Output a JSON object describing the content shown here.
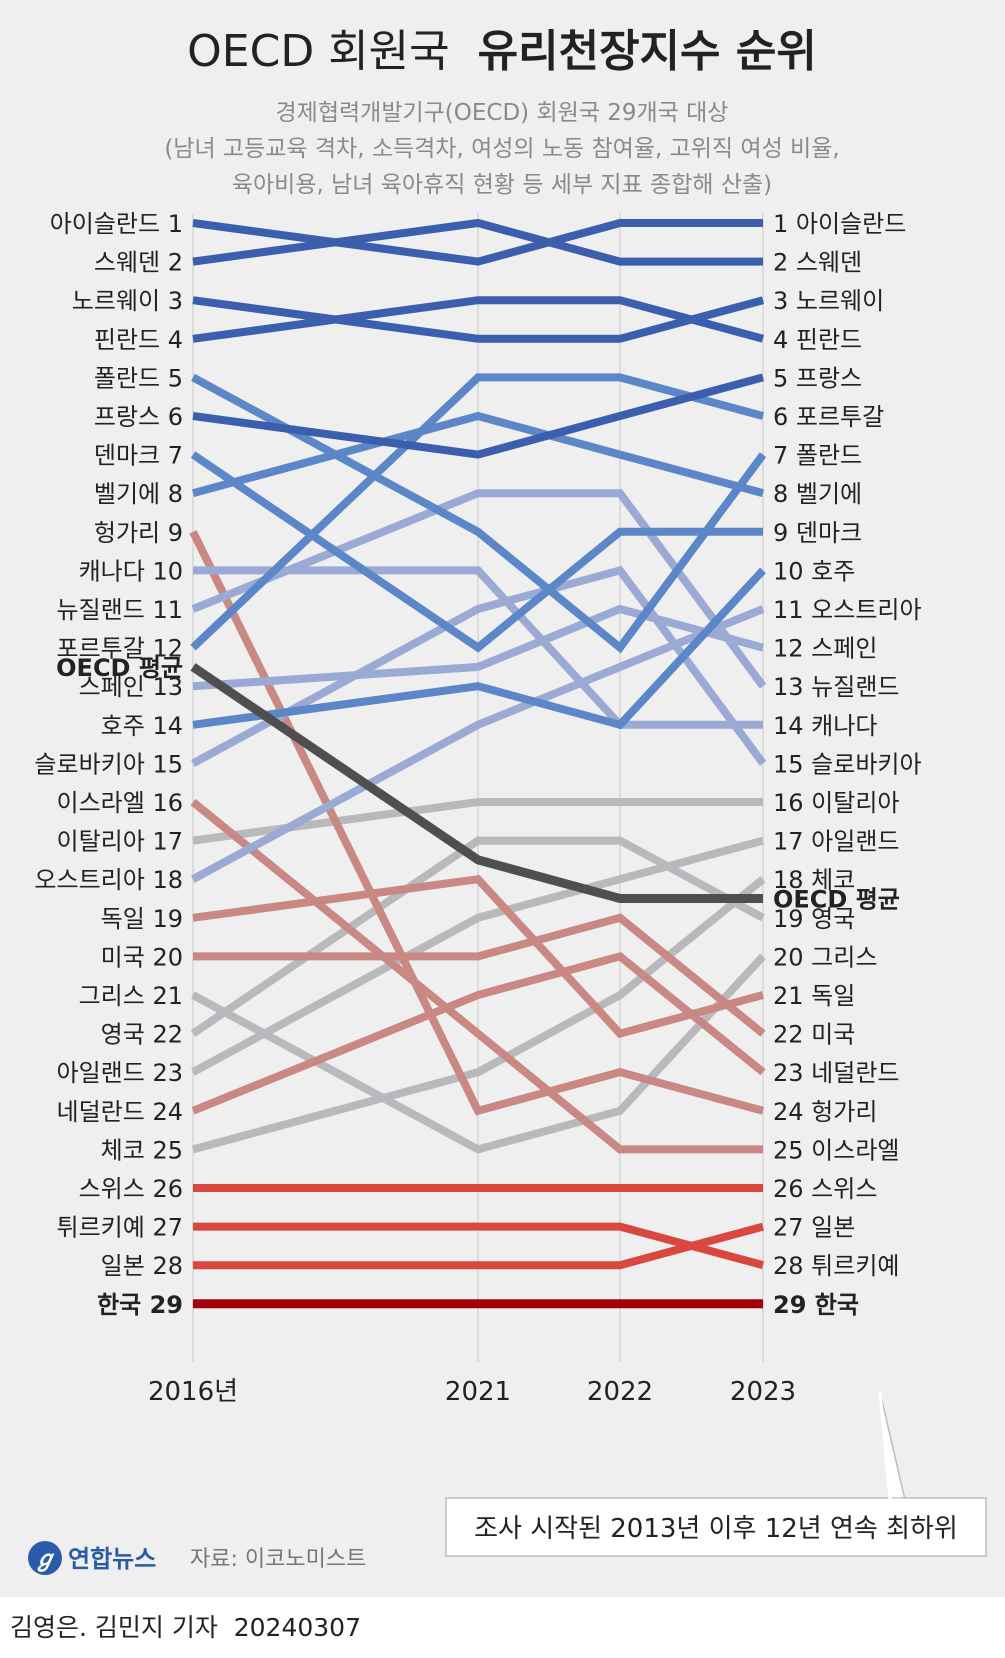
{
  "header": {
    "title_light": "OECD 회원국",
    "title_bold": "유리천장지수 순위",
    "subtitle_lines": [
      "경제협력개발기구(OECD) 회원국 29개국 대상",
      "(남녀 고등교육 격차, 소득격차, 여성의 노동 참여율, 고위직 여성 비율,",
      "육아비용, 남녀 육아휴직 현황 등 세부 지표 종합해 산출)"
    ]
  },
  "chart_data": {
    "type": "line",
    "title": "OECD 회원국 유리천장지수 순위",
    "x": [
      "2016년",
      "2021",
      "2022",
      "2023"
    ],
    "y_axis": "rank (1 = top, 29 = bottom), inverted",
    "ylim": [
      1,
      29
    ],
    "grid": "vertical lines at each year",
    "series": [
      {
        "name": "아이슬란드",
        "ranks": [
          1,
          2,
          1,
          1
        ],
        "color": "#3b5fae"
      },
      {
        "name": "스웨덴",
        "ranks": [
          2,
          1,
          2,
          2
        ],
        "color": "#3b5fae"
      },
      {
        "name": "노르웨이",
        "ranks": [
          3,
          4,
          4,
          3
        ],
        "color": "#3b5fae"
      },
      {
        "name": "핀란드",
        "ranks": [
          4,
          3,
          3,
          4
        ],
        "color": "#3b5fae"
      },
      {
        "name": "폴란드",
        "ranks": [
          5,
          9,
          12,
          7
        ],
        "color": "#5b86c8"
      },
      {
        "name": "프랑스",
        "ranks": [
          6,
          7,
          6,
          5
        ],
        "color": "#3b5fae"
      },
      {
        "name": "덴마크",
        "ranks": [
          7,
          12,
          9,
          9
        ],
        "color": "#5b86c8"
      },
      {
        "name": "벨기에",
        "ranks": [
          8,
          6,
          7,
          8
        ],
        "color": "#5b86c8"
      },
      {
        "name": "헝가리",
        "ranks": [
          9,
          24,
          23,
          24
        ],
        "color": "#c98884"
      },
      {
        "name": "캐나다",
        "ranks": [
          10,
          10,
          14,
          14
        ],
        "color": "#9aaad4"
      },
      {
        "name": "뉴질랜드",
        "ranks": [
          11,
          8,
          8,
          13
        ],
        "color": "#9aaad4"
      },
      {
        "name": "포르투갈",
        "ranks": [
          12,
          5,
          5,
          6
        ],
        "color": "#5b86c8"
      },
      {
        "name": "스페인",
        "ranks": [
          13,
          12.5,
          11,
          12
        ],
        "color": "#9aaad4"
      },
      {
        "name": "호주",
        "ranks": [
          14,
          13,
          14,
          10
        ],
        "color": "#5b86c8"
      },
      {
        "name": "슬로바키아",
        "ranks": [
          15,
          11,
          10,
          15
        ],
        "color": "#9aaad4"
      },
      {
        "name": "이스라엘",
        "ranks": [
          16,
          22,
          25,
          25
        ],
        "color": "#c98884"
      },
      {
        "name": "이탈리아",
        "ranks": [
          17,
          16,
          16,
          16
        ],
        "color": "#b9b9bd"
      },
      {
        "name": "오스트리아",
        "ranks": [
          18,
          14,
          12.5,
          11
        ],
        "color": "#9aaad4"
      },
      {
        "name": "독일",
        "ranks": [
          19,
          18,
          22,
          21
        ],
        "color": "#c98884"
      },
      {
        "name": "미국",
        "ranks": [
          20,
          20,
          19,
          22
        ],
        "color": "#c98884"
      },
      {
        "name": "그리스",
        "ranks": [
          21,
          25,
          24,
          20
        ],
        "color": "#b9b9bd"
      },
      {
        "name": "영국",
        "ranks": [
          22,
          17,
          17,
          19
        ],
        "color": "#b9b9bd"
      },
      {
        "name": "아일랜드",
        "ranks": [
          23,
          19,
          18,
          17
        ],
        "color": "#b9b9bd"
      },
      {
        "name": "네덜란드",
        "ranks": [
          24,
          21,
          20,
          23
        ],
        "color": "#c98884"
      },
      {
        "name": "체코",
        "ranks": [
          25,
          23,
          21,
          18
        ],
        "color": "#b9b9bd"
      },
      {
        "name": "스위스",
        "ranks": [
          26,
          26,
          26,
          26
        ],
        "color": "#d9473f"
      },
      {
        "name": "튀르키예",
        "ranks": [
          27,
          27,
          27,
          28
        ],
        "color": "#d9473f"
      },
      {
        "name": "일본",
        "ranks": [
          28,
          28,
          28,
          27
        ],
        "color": "#d9473f"
      },
      {
        "name": "한국",
        "ranks": [
          29,
          29,
          29,
          29
        ],
        "color": "#a4000c",
        "bold": true
      },
      {
        "name": "OECD 평균",
        "ranks": [
          12.5,
          17.5,
          18.5,
          18.5
        ],
        "color": "#4f4f52",
        "bold": true
      }
    ],
    "left_labels": [
      {
        "text": "아이슬란드",
        "rank": "1"
      },
      {
        "text": "스웨덴",
        "rank": "2"
      },
      {
        "text": "노르웨이",
        "rank": "3"
      },
      {
        "text": "핀란드",
        "rank": "4"
      },
      {
        "text": "폴란드",
        "rank": "5"
      },
      {
        "text": "프랑스",
        "rank": "6"
      },
      {
        "text": "덴마크",
        "rank": "7"
      },
      {
        "text": "벨기에",
        "rank": "8"
      },
      {
        "text": "헝가리",
        "rank": "9"
      },
      {
        "text": "캐나다",
        "rank": "10"
      },
      {
        "text": "뉴질랜드",
        "rank": "11"
      },
      {
        "text": "포르투갈",
        "rank": "12"
      },
      {
        "text": "OECD 평균",
        "rank": "",
        "pos": 12.5,
        "bold": true
      },
      {
        "text": "스페인",
        "rank": "13"
      },
      {
        "text": "호주",
        "rank": "14"
      },
      {
        "text": "슬로바키아",
        "rank": "15"
      },
      {
        "text": "이스라엘",
        "rank": "16"
      },
      {
        "text": "이탈리아",
        "rank": "17"
      },
      {
        "text": "오스트리아",
        "rank": "18"
      },
      {
        "text": "독일",
        "rank": "19"
      },
      {
        "text": "미국",
        "rank": "20"
      },
      {
        "text": "그리스",
        "rank": "21"
      },
      {
        "text": "영국",
        "rank": "22"
      },
      {
        "text": "아일랜드",
        "rank": "23"
      },
      {
        "text": "네덜란드",
        "rank": "24"
      },
      {
        "text": "체코",
        "rank": "25"
      },
      {
        "text": "스위스",
        "rank": "26"
      },
      {
        "text": "튀르키예",
        "rank": "27"
      },
      {
        "text": "일본",
        "rank": "28"
      },
      {
        "text": "한국",
        "rank": "29",
        "bold": true
      }
    ],
    "right_labels": [
      {
        "rank": "1",
        "text": "아이슬란드"
      },
      {
        "rank": "2",
        "text": "스웨덴"
      },
      {
        "rank": "3",
        "text": "노르웨이"
      },
      {
        "rank": "4",
        "text": "핀란드"
      },
      {
        "rank": "5",
        "text": "프랑스"
      },
      {
        "rank": "6",
        "text": "포르투갈"
      },
      {
        "rank": "7",
        "text": "폴란드"
      },
      {
        "rank": "8",
        "text": "벨기에"
      },
      {
        "rank": "9",
        "text": "덴마크"
      },
      {
        "rank": "10",
        "text": "호주"
      },
      {
        "rank": "11",
        "text": "오스트리아"
      },
      {
        "rank": "12",
        "text": "스페인"
      },
      {
        "rank": "13",
        "text": "뉴질랜드"
      },
      {
        "rank": "14",
        "text": "캐나다"
      },
      {
        "rank": "15",
        "text": "슬로바키아"
      },
      {
        "rank": "16",
        "text": "이탈리아"
      },
      {
        "rank": "17",
        "text": "아일랜드"
      },
      {
        "rank": "18",
        "text": "체코"
      },
      {
        "rank": "",
        "text": "OECD 평균",
        "pos": 18.5,
        "bold": true
      },
      {
        "rank": "19",
        "text": "영국"
      },
      {
        "rank": "20",
        "text": "그리스"
      },
      {
        "rank": "21",
        "text": "독일"
      },
      {
        "rank": "22",
        "text": "미국"
      },
      {
        "rank": "23",
        "text": "네덜란드"
      },
      {
        "rank": "24",
        "text": "헝가리"
      },
      {
        "rank": "25",
        "text": "이스라엘"
      },
      {
        "rank": "26",
        "text": "스위스"
      },
      {
        "rank": "27",
        "text": "일본"
      },
      {
        "rank": "28",
        "text": "튀르키예"
      },
      {
        "rank": "29",
        "text": "한국",
        "bold": true
      }
    ]
  },
  "callout": "조사 시작된 2013년 이후 12년 연속 최하위",
  "footer": {
    "logo_text": "연합뉴스",
    "source": "자료: 이코노미스트",
    "credit": "김영은. 김민지 기자  20240307"
  },
  "colors": {
    "background": "#efefef",
    "korea": "#a4000c",
    "oecd_avg": "#4f4f52",
    "logo_blue": "#2a5ba8"
  }
}
